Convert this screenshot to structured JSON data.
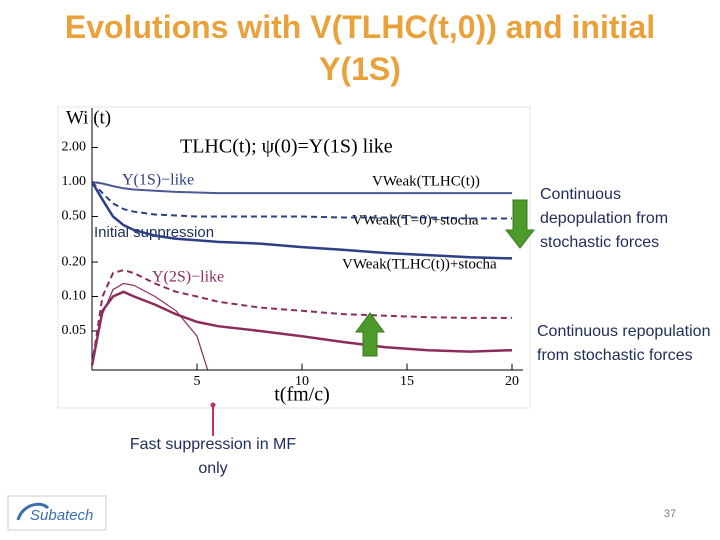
{
  "title": "Evolutions with V(TLHC(t,0)) and initial Υ(1S)",
  "annotations": {
    "depopulation": "Continuous depopulation from stochastic forces",
    "repopulation": "Continuous repopulation from stochastic forces",
    "fast_suppression": "Fast suppression in MF only"
  },
  "page_number": "37",
  "logo": "Subatech",
  "chart_data": {
    "type": "line",
    "title": "TLHC(t);  ψ(0)=Υ(1S)  like",
    "y_label": "Wi (t)",
    "x_label": "t(fm/c)",
    "log_y": true,
    "grid": false,
    "xlim": [
      0,
      20.5
    ],
    "ylim": [
      0.023,
      4.4
    ],
    "xticks": [
      5,
      10,
      15,
      20
    ],
    "yticks": [
      {
        "value": 0.05,
        "label": "0.05"
      },
      {
        "value": 0.1,
        "label": "0.10"
      },
      {
        "value": 0.2,
        "label": "0.20"
      },
      {
        "value": 0.5,
        "label": "0.50"
      },
      {
        "value": 1,
        "label": "1.00"
      },
      {
        "value": 2,
        "label": "2.00"
      }
    ],
    "annotations": [
      "Υ(1S)−like",
      "Υ(2S)−like",
      "Initial suppression"
    ],
    "series": [
      {
        "name": "VWeak(TLHC(t))",
        "color": "#4b5a96",
        "line_style": "solid",
        "linewidth": 2,
        "x": [
          0,
          0.5,
          1,
          1.5,
          2,
          3,
          4,
          5,
          6,
          8,
          10,
          12,
          14,
          16,
          18,
          20
        ],
        "values": [
          1.0,
          0.97,
          0.92,
          0.88,
          0.86,
          0.84,
          0.82,
          0.81,
          0.8,
          0.8,
          0.8,
          0.8,
          0.8,
          0.8,
          0.8,
          0.8
        ]
      },
      {
        "name": "VWeak(T=0)+stocha",
        "color": "#2e3f86",
        "line_style": "dashed",
        "linewidth": 2,
        "x": [
          0,
          0.5,
          1,
          1.5,
          2,
          3,
          4,
          5,
          6,
          8,
          10,
          12,
          14,
          16,
          18,
          20
        ],
        "values": [
          1.0,
          0.8,
          0.65,
          0.58,
          0.55,
          0.52,
          0.51,
          0.5,
          0.5,
          0.5,
          0.5,
          0.49,
          0.49,
          0.49,
          0.48,
          0.48
        ]
      },
      {
        "name": "VWeak(TLHC(t))+stocha",
        "color": "#2e3f86",
        "line_style": "solid",
        "linewidth": 2.5,
        "x": [
          0,
          0.5,
          1,
          1.5,
          2,
          3,
          4,
          5,
          6,
          8,
          10,
          12,
          14,
          16,
          18,
          20
        ],
        "values": [
          1.0,
          0.7,
          0.5,
          0.42,
          0.38,
          0.34,
          0.32,
          0.31,
          0.3,
          0.29,
          0.27,
          0.255,
          0.24,
          0.23,
          0.22,
          0.215
        ]
      },
      {
        "color": "#8c2c5e",
        "line_style": "solid",
        "linewidth": 1.2,
        "x": [
          0,
          0.5,
          1,
          1.5,
          2,
          3,
          4,
          5,
          5.5
        ],
        "values": [
          0.025,
          0.07,
          0.115,
          0.13,
          0.125,
          0.1,
          0.075,
          0.045,
          0.023
        ]
      },
      {
        "color": "#8c2c5e",
        "line_style": "dashed",
        "linewidth": 2,
        "x": [
          0,
          0.5,
          1,
          1.5,
          2,
          3,
          4,
          5,
          6,
          8,
          10,
          12,
          14,
          16,
          18,
          20
        ],
        "values": [
          0.025,
          0.1,
          0.16,
          0.17,
          0.16,
          0.13,
          0.11,
          0.1,
          0.09,
          0.08,
          0.075,
          0.07,
          0.068,
          0.066,
          0.065,
          0.065
        ]
      },
      {
        "color": "#8c2c5e",
        "line_style": "solid",
        "linewidth": 2.5,
        "x": [
          0,
          0.5,
          1,
          1.5,
          2,
          3,
          4,
          5,
          6,
          8,
          10,
          12,
          14,
          16,
          18,
          20
        ],
        "values": [
          0.025,
          0.075,
          0.1,
          0.11,
          0.1,
          0.085,
          0.07,
          0.06,
          0.055,
          0.05,
          0.045,
          0.04,
          0.036,
          0.034,
          0.033,
          0.034
        ]
      }
    ]
  }
}
